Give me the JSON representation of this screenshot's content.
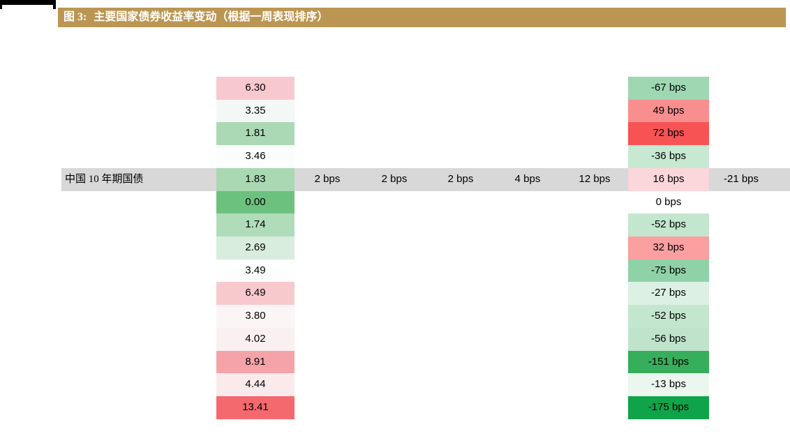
{
  "header": {
    "figure_label": "图 3:",
    "title": "主要国家债券收益率变动（根据一周表现排序）"
  },
  "colors": {
    "title_bar": "#BB9653",
    "highlight_band": "#D8D8D8",
    "text": "#000000",
    "scale_green_max": "#10A44A",
    "scale_red_max": "#F4696E"
  },
  "highlight_row": {
    "label": "中国 10 年期国债",
    "week_changes": [
      "2 bps",
      "2 bps",
      "2 bps",
      "4 bps",
      "12 bps"
    ],
    "right_change": "-21 bps"
  },
  "table": {
    "rows": [
      {
        "yield": "6.30",
        "yield_color": "#F8C8CF",
        "change": "-67 bps",
        "change_color": "#9FD7B3"
      },
      {
        "yield": "3.35",
        "yield_color": "#F3F8F6",
        "change": "49 bps",
        "change_color": "#F98E8E"
      },
      {
        "yield": "1.81",
        "yield_color": "#ABD9B5",
        "change": "72 bps",
        "change_color": "#F75355"
      },
      {
        "yield": "3.46",
        "yield_color": "#FBFDFC",
        "change": "-36 bps",
        "change_color": "#C7E9D2"
      },
      {
        "yield": "1.83",
        "yield_color": "#AAD8B3",
        "change": "16 bps",
        "change_color": "#FBD6DB"
      },
      {
        "yield": "0.00",
        "yield_color": "#6DC17F",
        "change": "0 bps",
        "change_color": "#FFFFFF"
      },
      {
        "yield": "1.74",
        "yield_color": "#B1DCBA",
        "change": "-52 bps",
        "change_color": "#C3E6CE"
      },
      {
        "yield": "2.69",
        "yield_color": "#D8EDDE",
        "change": "32 bps",
        "change_color": "#FB9FA1"
      },
      {
        "yield": "3.49",
        "yield_color": "#FDFEFE",
        "change": "-75 bps",
        "change_color": "#8FD2A7"
      },
      {
        "yield": "6.49",
        "yield_color": "#F7C9CD",
        "change": "-27 bps",
        "change_color": "#DDF0E4"
      },
      {
        "yield": "3.80",
        "yield_color": "#FBF5F6",
        "change": "-52 bps",
        "change_color": "#C3E6CE"
      },
      {
        "yield": "4.02",
        "yield_color": "#FAEFF1",
        "change": "-56 bps",
        "change_color": "#BFE4CB"
      },
      {
        "yield": "8.91",
        "yield_color": "#F5A3A9",
        "change": "-151 bps",
        "change_color": "#37AE5B"
      },
      {
        "yield": "4.44",
        "yield_color": "#FAEAEC",
        "change": "-13 bps",
        "change_color": "#EBF6EF"
      },
      {
        "yield": "13.41",
        "yield_color": "#F4696E",
        "change": "-175 bps",
        "change_color": "#10A44A"
      }
    ]
  },
  "chart_data": {
    "type": "table",
    "title": "图 3: 主要国家债券收益率变动（根据一周表现排序）",
    "yields": [
      6.3,
      3.35,
      1.81,
      3.46,
      1.83,
      0.0,
      1.74,
      2.69,
      3.49,
      6.49,
      3.8,
      4.02,
      8.91,
      4.44,
      13.41
    ],
    "changes_bps": [
      -67,
      49,
      72,
      -36,
      16,
      0,
      -52,
      32,
      -75,
      -27,
      -52,
      -56,
      -151,
      -13,
      -175
    ],
    "highlighted_row": {
      "index": 4,
      "label": "中国 10 年期国债",
      "yield": 1.83,
      "week_changes_bps": [
        2,
        2,
        2,
        4,
        12
      ],
      "change_bps": 16,
      "right_change_bps": -21
    },
    "layout_hints": "two heat-mapped columns (yield levels, weekly bps changes), red-white-green color scale, one gray highlighted row with extra values"
  }
}
